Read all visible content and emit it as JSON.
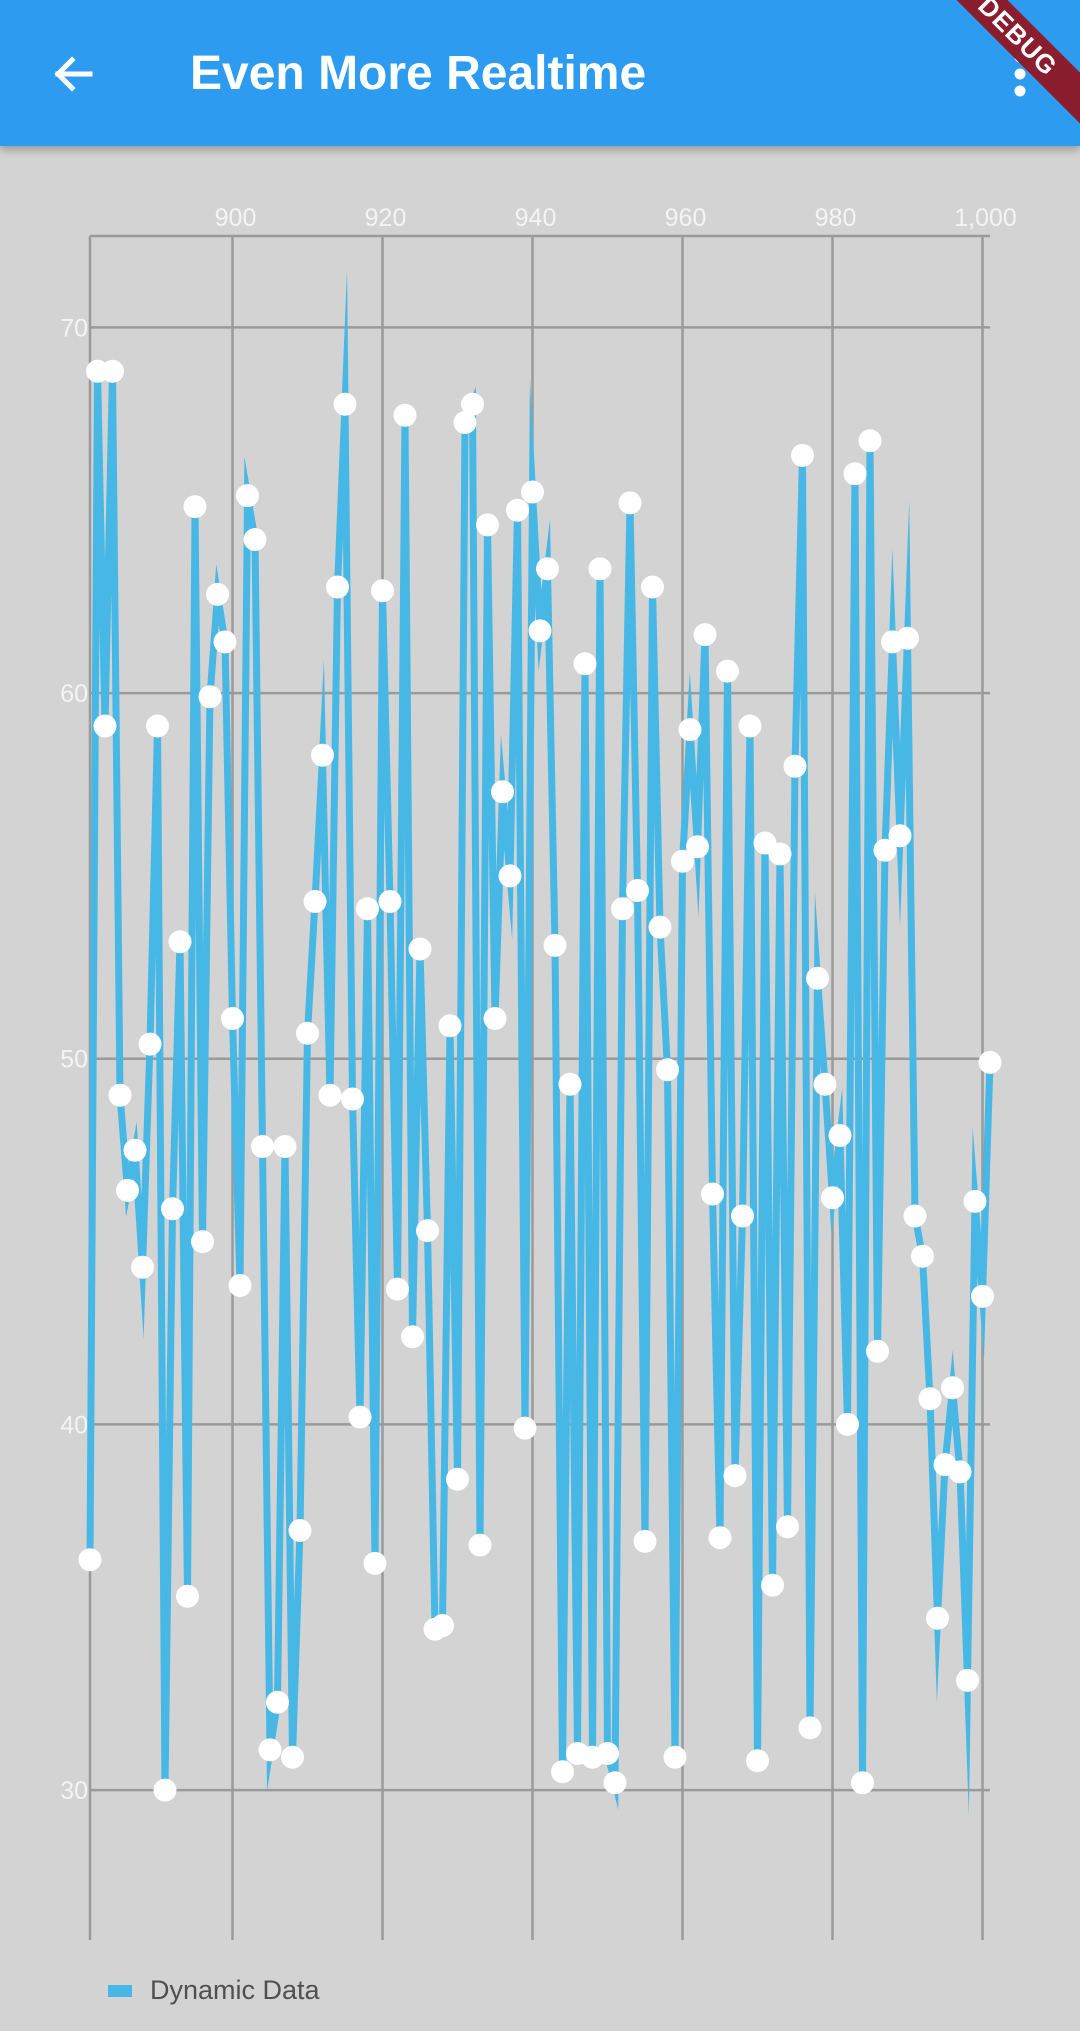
{
  "appbar": {
    "title": "Even More Realtime",
    "back_icon": "arrow-left-icon",
    "menu_icon": "more-vert-icon",
    "color": "#2d9cf0"
  },
  "debug_banner": {
    "label": "DEBUG"
  },
  "chart_data": {
    "type": "line",
    "title": "",
    "xlabel": "",
    "ylabel": "",
    "xlim": [
      881,
      1001
    ],
    "ylim": [
      25.9,
      72.5
    ],
    "x_ticks": [
      900,
      920,
      940,
      960,
      980,
      1000
    ],
    "x_tick_labels": [
      "900",
      "920",
      "940",
      "960",
      "980",
      "1,000"
    ],
    "y_ticks": [
      30,
      40,
      50,
      60,
      70
    ],
    "y_tick_labels": [
      "30",
      "40",
      "50",
      "60",
      "70"
    ],
    "grid": true,
    "x_axis_position": "top",
    "legend_position": "bottom-left",
    "line_color": "#47b8e5",
    "point_color": "#ffffff",
    "series": [
      {
        "name": "Dynamic Data",
        "x": [
          881,
          882,
          883,
          884,
          885,
          886,
          887,
          888,
          889,
          890,
          891,
          892,
          893,
          894,
          895,
          896,
          897,
          898,
          899,
          900,
          901,
          902,
          903,
          904,
          905,
          906,
          907,
          908,
          909,
          910,
          911,
          912,
          913,
          914,
          915,
          916,
          917,
          918,
          919,
          920,
          921,
          922,
          923,
          924,
          925,
          926,
          927,
          928,
          929,
          930,
          931,
          932,
          933,
          934,
          935,
          936,
          937,
          938,
          939,
          940,
          941,
          942,
          943,
          944,
          945,
          946,
          947,
          948,
          949,
          950,
          951,
          952,
          953,
          954,
          955,
          956,
          957,
          958,
          959,
          960,
          961,
          962,
          963,
          964,
          965,
          966,
          967,
          968,
          969,
          970,
          971,
          972,
          973,
          974,
          975,
          976,
          977,
          978,
          979,
          980,
          981,
          982,
          983,
          984,
          985,
          986,
          987,
          988,
          989,
          990,
          991,
          992,
          993,
          994,
          995,
          996,
          997,
          998,
          999,
          1000,
          1001
        ],
        "values": [
          36.3,
          68.8,
          59.1,
          68.8,
          49.0,
          46.4,
          47.5,
          44.3,
          50.4,
          59.1,
          30.0,
          45.9,
          53.2,
          35.3,
          65.1,
          45.0,
          59.9,
          62.7,
          61.4,
          51.1,
          43.8,
          65.4,
          64.2,
          47.6,
          31.1,
          32.4,
          47.6,
          30.9,
          37.1,
          50.7,
          54.3,
          58.3,
          49.0,
          62.9,
          67.9,
          48.9,
          40.2,
          54.1,
          36.2,
          62.8,
          54.3,
          43.7,
          67.6,
          42.4,
          53.0,
          45.3,
          34.4,
          34.5,
          50.9,
          38.5,
          67.4,
          67.9,
          36.7,
          64.6,
          51.1,
          57.3,
          55.0,
          65.0,
          39.9,
          65.5,
          61.7,
          63.4,
          53.1,
          30.5,
          49.3,
          31.0,
          60.8,
          30.9,
          63.4,
          31.0,
          30.2,
          54.1,
          65.2,
          54.6,
          36.8,
          62.9,
          53.6,
          49.7,
          30.9,
          55.4,
          59.0,
          55.8,
          61.6,
          46.3,
          36.9,
          60.6,
          38.6,
          45.7,
          59.1,
          30.8,
          55.9,
          35.6,
          55.6,
          37.2,
          58.0,
          66.5,
          31.7,
          52.2,
          49.3,
          46.2,
          47.9,
          40.0,
          66.0,
          30.2,
          66.9,
          42.0,
          55.7,
          61.4,
          56.1,
          61.5,
          45.7,
          44.6,
          40.7,
          34.7,
          38.9,
          41.0,
          38.7,
          33.0,
          46.1,
          43.5,
          49.9
        ]
      }
    ]
  }
}
